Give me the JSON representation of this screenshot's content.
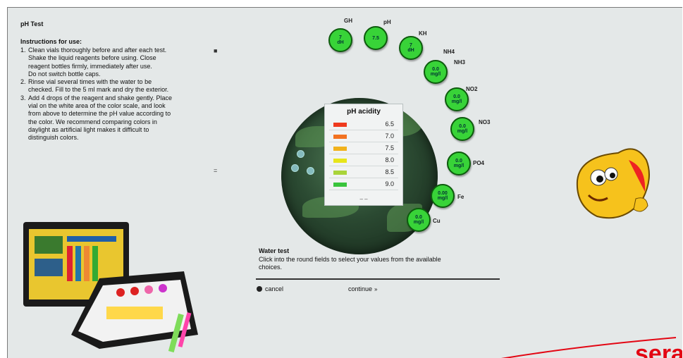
{
  "page": {
    "title": "pH Test",
    "instructions_heading": "Instructions for use:",
    "steps": [
      {
        "num": "1.",
        "lines": [
          "Clean vials thoroughly before and after each test.",
          "Shake the liquid reagents before using. Close",
          "reagent bottles firmly, immediately after use.",
          "Do not switch bottle caps."
        ]
      },
      {
        "num": "2.",
        "lines": [
          "Rinse vial several times with the water to be",
          "checked. Fill to the 5 ml mark and dry the exterior."
        ]
      },
      {
        "num": "3.",
        "lines": [
          "Add 4 drops of the reagent and shake gently. Place",
          "vial on the white area of the color scale, and look",
          "from above to determine the pH value according to",
          "the color. We recommend comparing colors in",
          "daylight as artificial light makes it difficult to",
          "distinguish colors."
        ]
      }
    ]
  },
  "ph_scale": {
    "title": "pH acidity",
    "rows": [
      {
        "value": "6.5",
        "color": "#ef3a1e"
      },
      {
        "value": "7.0",
        "color": "#f27221"
      },
      {
        "value": "7.5",
        "color": "#f1b21c"
      },
      {
        "value": "8.0",
        "color": "#e7e51a"
      },
      {
        "value": "8.5",
        "color": "#a9d43a"
      },
      {
        "value": "9.0",
        "color": "#39c43c"
      }
    ],
    "footer": "– –"
  },
  "parameters": [
    {
      "id": "gh",
      "label": "GH",
      "value": "7\ndH"
    },
    {
      "id": "ph",
      "label": "pH",
      "value": "7.5"
    },
    {
      "id": "kh",
      "label": "KH",
      "value": "7\ndH"
    },
    {
      "id": "nh4",
      "label": "NH4",
      "value": "0.0\nmg/l"
    },
    {
      "id": "nh3",
      "label": "NH3",
      "value": ""
    },
    {
      "id": "no2",
      "label": "NO2",
      "value": "0.0\nmg/l"
    },
    {
      "id": "no3",
      "label": "NO3",
      "value": "0.0\nmg/l"
    },
    {
      "id": "po4",
      "label": "PO4",
      "value": "0.0\nmg/l"
    },
    {
      "id": "fe",
      "label": "Fe",
      "value": "0.00\nmg/l"
    },
    {
      "id": "cu",
      "label": "Cu",
      "value": "0.0\nmg/l"
    }
  ],
  "water_test": {
    "title": "Water test",
    "text": "Click into the round fields to select your values from the available choices."
  },
  "nav": {
    "cancel_label": "cancel",
    "continue_label": "continue",
    "continue_icon": "»"
  },
  "colors": {
    "panel": "#e4e8e8",
    "param_button": "#38d338",
    "logo_red": "#e30613"
  },
  "logo": {
    "text": "sera"
  }
}
